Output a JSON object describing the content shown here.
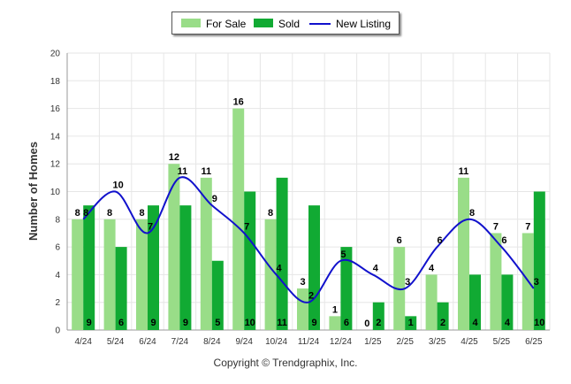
{
  "colors": {
    "for_sale": "#99dd88",
    "sold": "#11aa33",
    "new_listing": "#1111cc",
    "grid": "#e6e6e6"
  },
  "legend": {
    "for_sale": "For Sale",
    "sold": "Sold",
    "new_listing": "New Listing"
  },
  "footer": {
    "copyright": "Copyright © Trendgraphix, Inc."
  },
  "chart_data": {
    "type": "bar",
    "ylabel": "Number of Homes",
    "xlabel": "",
    "ylim": [
      0,
      20
    ],
    "yticks": [
      0,
      2,
      4,
      6,
      8,
      10,
      12,
      14,
      16,
      18,
      20
    ],
    "grid": true,
    "legend_position": "top-center",
    "categories": [
      "4/24",
      "5/24",
      "6/24",
      "7/24",
      "8/24",
      "9/24",
      "10/24",
      "11/24",
      "12/24",
      "1/25",
      "2/25",
      "3/25",
      "4/25",
      "5/25",
      "6/25"
    ],
    "series": [
      {
        "name": "For Sale",
        "type": "bar",
        "values": [
          8,
          8,
          8,
          12,
          11,
          16,
          8,
          3,
          1,
          0,
          6,
          4,
          11,
          7,
          7
        ]
      },
      {
        "name": "Sold",
        "type": "bar",
        "values": [
          9,
          6,
          9,
          9,
          5,
          10,
          11,
          9,
          6,
          2,
          1,
          2,
          4,
          4,
          10
        ]
      },
      {
        "name": "New Listing",
        "type": "line",
        "values": [
          8,
          10,
          7,
          11,
          9,
          7,
          4,
          2,
          5,
          4,
          3,
          6,
          8,
          6,
          3
        ]
      }
    ]
  }
}
